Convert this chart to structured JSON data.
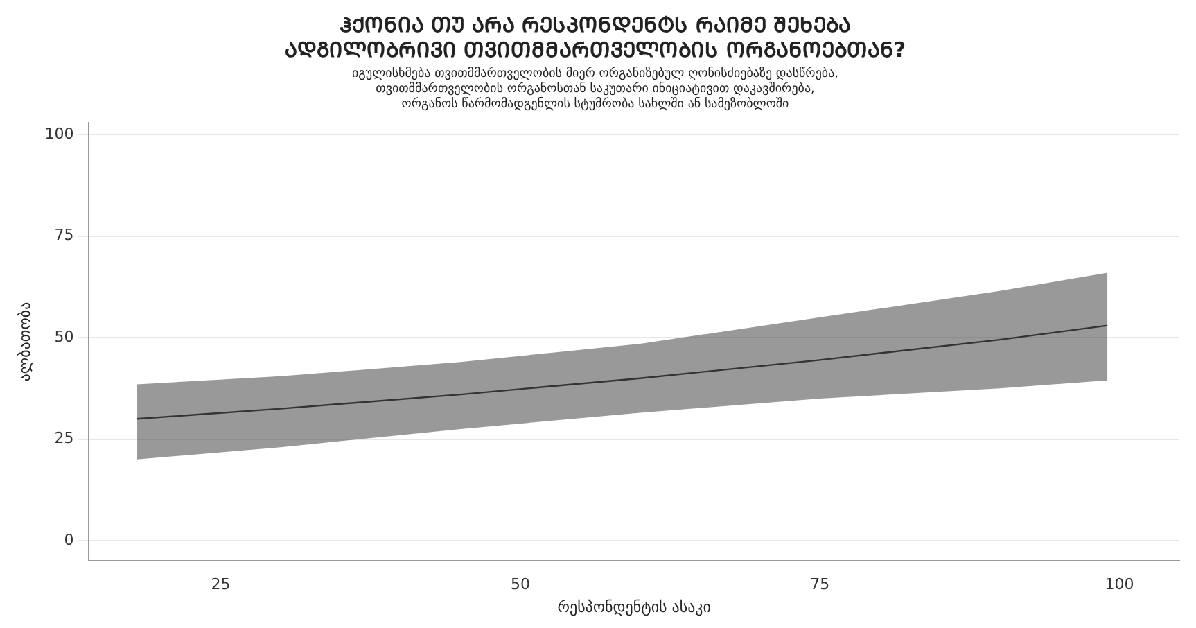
{
  "chart_data": {
    "type": "line",
    "title": [
      "ᲰᲥᲝᲜᲘᲐ ᲗᲣ ᲐᲠᲐ ᲠᲔᲡᲞᲝᲜᲓᲔᲜᲢᲡ ᲠᲐᲘᲛᲔ ᲨᲔᲮᲔᲑᲐ",
      "ᲐᲓᲒᲘᲚᲝᲑᲠᲘᲕᲘ ᲗᲕᲘᲗᲛᲛᲐᲠᲗᲕᲔᲚᲝᲑᲘᲡ ᲝᲠᲒᲐᲜᲝᲔᲑᲗᲐᲜ?"
    ],
    "subtitle": [
      "იგულისხმება თვითმმართველობის მიერ ორგანიზებულ ღონისძიებაზე დასწრება,",
      "თვითმმართველობის ორგანოსთან საკუთარი ინიციატივით დაკავშირება,",
      "ორგანოს წარმომადგენლის სტუმრობა სახლში ან სამეზობლოში"
    ],
    "xlabel": "რესპონდენტის ასაკი",
    "ylabel": "ალბათობა",
    "x": [
      18,
      30,
      45,
      60,
      75,
      90,
      99
    ],
    "series": [
      {
        "color": "#333333",
        "values": [
          30,
          32.5,
          36,
          40,
          44.5,
          49.5,
          53
        ],
        "lower": [
          20,
          23,
          27.5,
          31.5,
          35,
          37.5,
          39.5
        ],
        "upper": [
          38.5,
          40.5,
          44,
          48.5,
          55,
          61.5,
          66
        ]
      }
    ],
    "xlim": [
      14,
      105
    ],
    "xticks": [
      25,
      50,
      75,
      100
    ],
    "ylim": [
      -5,
      103
    ],
    "yticks": [
      0,
      25,
      50,
      75,
      100
    ],
    "grid": "y",
    "legend": false,
    "marker": "none",
    "line_style": "solid"
  }
}
